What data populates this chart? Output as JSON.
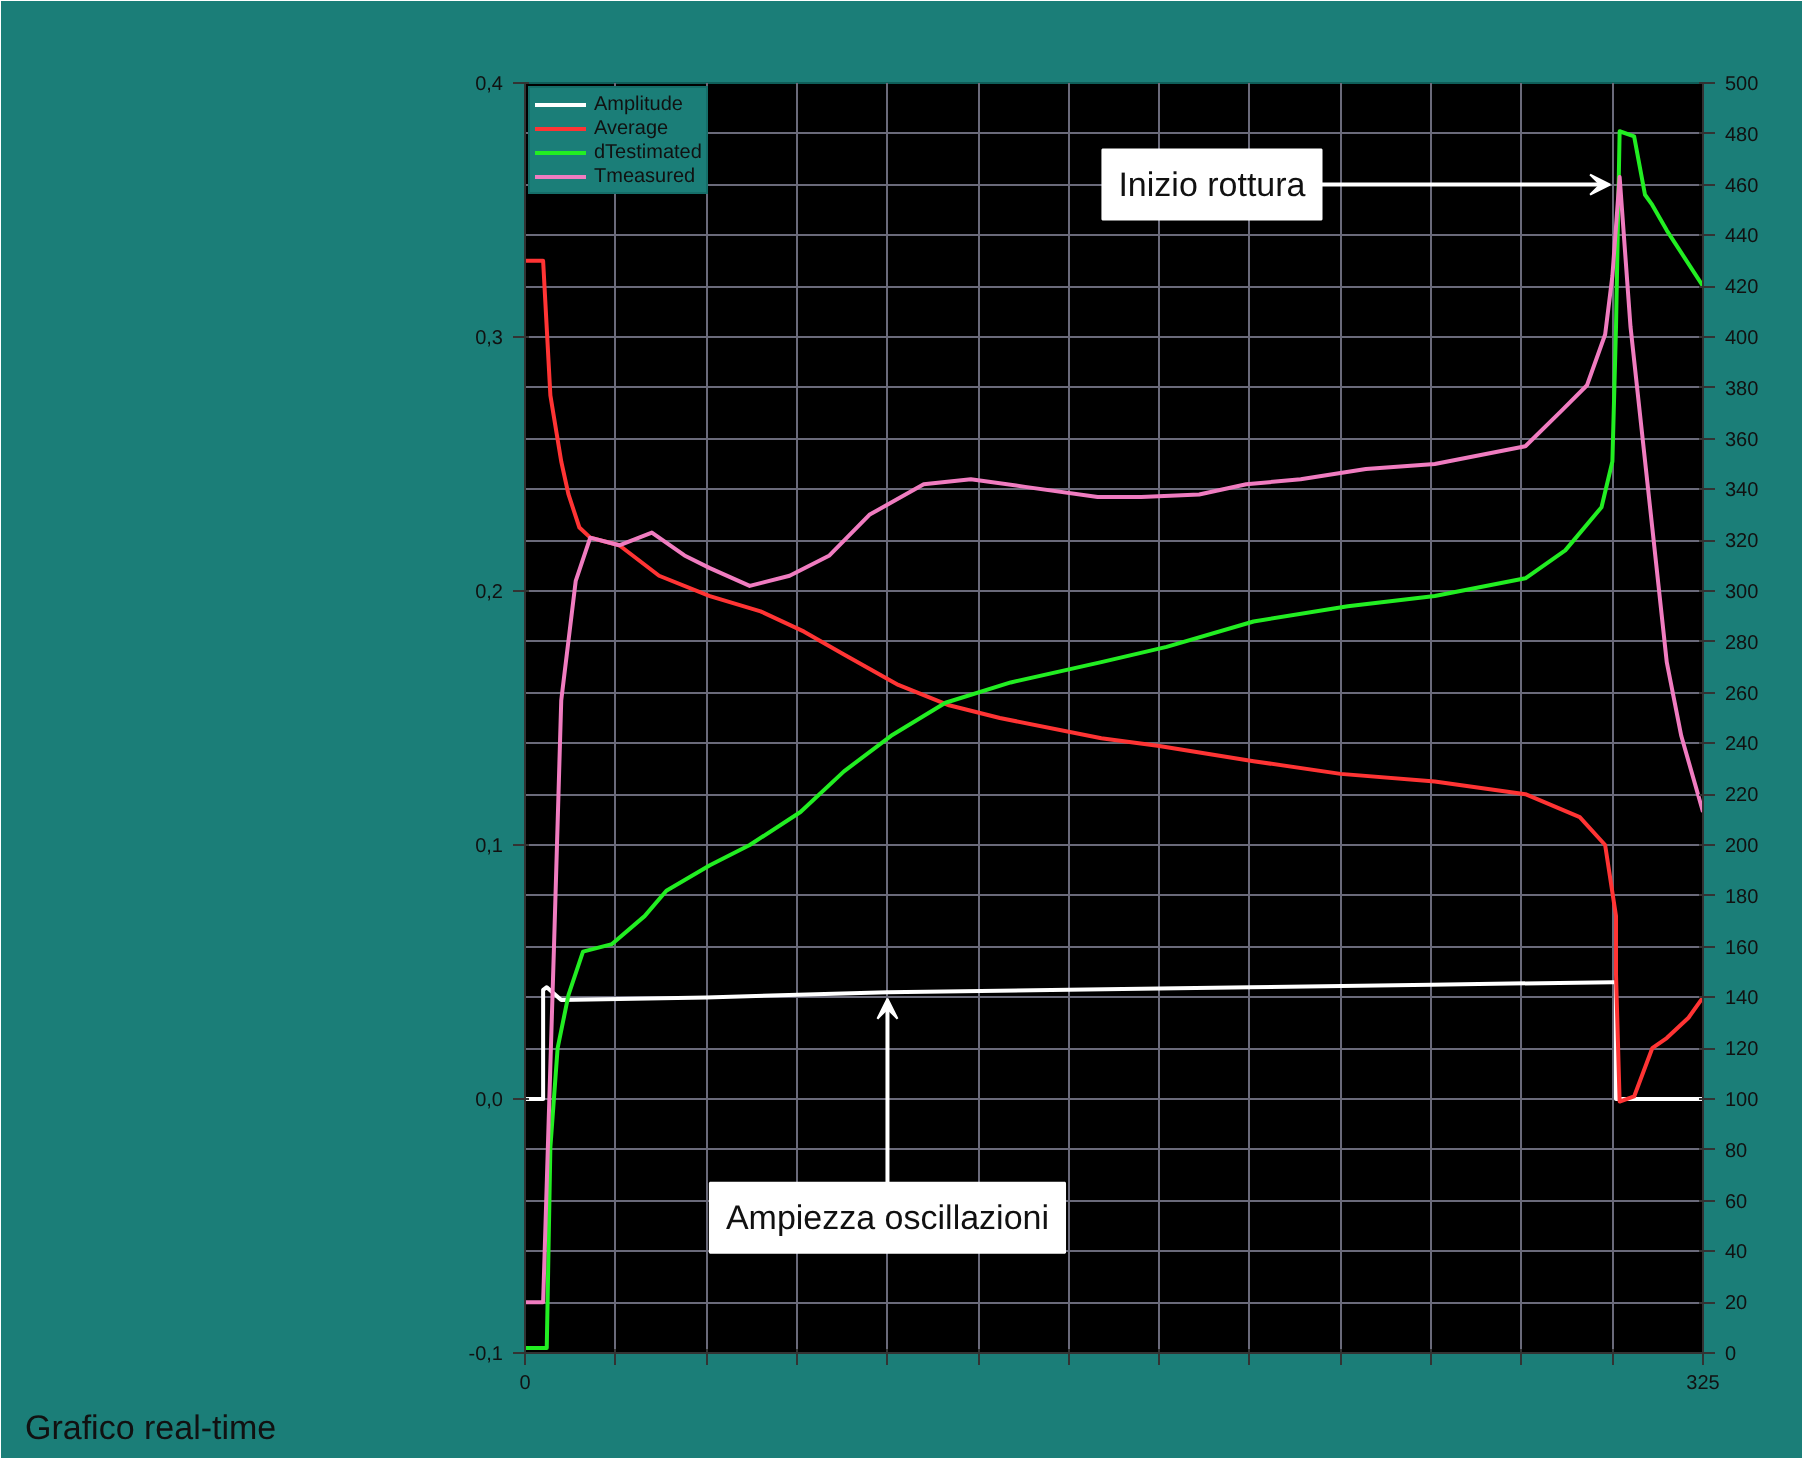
{
  "chart_data": {
    "type": "line",
    "xlim": [
      0,
      325
    ],
    "xticks": [
      0,
      {
        "value": 25,
        "label": null
      },
      {
        "value": 50,
        "label": null
      },
      {
        "value": 75,
        "label": null
      },
      {
        "value": 100,
        "label": null
      },
      {
        "value": 125,
        "label": null
      },
      {
        "value": 150,
        "label": null
      },
      {
        "value": 175,
        "label": null
      },
      {
        "value": 200,
        "label": null
      },
      {
        "value": 225,
        "label": null
      },
      {
        "value": 250,
        "label": null
      },
      {
        "value": 275,
        "label": null
      },
      {
        "value": 300,
        "label": null
      },
      325
    ],
    "ylim": [
      -0.1,
      0.4
    ],
    "yticks": [
      {
        "value": -0.1,
        "label": "-0,1"
      },
      {
        "value": 0,
        "label": "0,0"
      },
      {
        "value": 0.1,
        "label": "0,1"
      },
      {
        "value": 0.2,
        "label": "0,2"
      },
      {
        "value": 0.3,
        "label": "0,3"
      },
      {
        "value": 0.4,
        "label": "0,4"
      }
    ],
    "y2lim": [
      0,
      500
    ],
    "y2ticks": [
      0,
      20,
      40,
      60,
      80,
      100,
      120,
      140,
      160,
      180,
      200,
      220,
      240,
      260,
      280,
      300,
      320,
      340,
      360,
      380,
      400,
      420,
      440,
      460,
      480,
      500
    ],
    "grid": true,
    "legend": "top left",
    "series": [
      {
        "name": "Amplitude",
        "color": "#ffffff",
        "x": [
          0,
          5,
          5,
          6,
          10,
          50,
          100,
          150,
          200,
          250,
          300,
          301,
          301,
          325
        ],
        "values": [
          0,
          0,
          0.043,
          0.044,
          0.039,
          0.04,
          0.042,
          0.043,
          0.044,
          0.045,
          0.046,
          0.046,
          0,
          0
        ]
      },
      {
        "name": "Average",
        "color": "#ff3434",
        "x": [
          0,
          5,
          7,
          10,
          12,
          15,
          18,
          26,
          37,
          51,
          65,
          77,
          88,
          103,
          117,
          131,
          159,
          175,
          201,
          225,
          251,
          276,
          291,
          298,
          301,
          301,
          302,
          306,
          311,
          315,
          321,
          325
        ],
        "values": [
          0.33,
          0.33,
          0.277,
          0.251,
          0.238,
          0.225,
          0.221,
          0.218,
          0.206,
          0.198,
          0.192,
          0.184,
          0.175,
          0.163,
          0.155,
          0.15,
          0.142,
          0.139,
          0.133,
          0.128,
          0.125,
          0.12,
          0.111,
          0.1,
          0.072,
          0.049,
          -0.001,
          0.001,
          0.02,
          0.024,
          0.032,
          0.04
        ]
      },
      {
        "name": "dTestimated",
        "color": "#22ee22",
        "axis": "y2",
        "x": [
          0,
          6,
          7,
          9,
          12,
          16,
          24,
          33,
          39,
          51,
          62,
          76,
          88,
          101,
          116,
          134,
          159,
          177,
          201,
          227,
          251,
          276,
          287,
          297,
          300,
          301,
          302,
          306,
          309,
          311,
          315,
          325
        ],
        "values": [
          2,
          2,
          81,
          120,
          141,
          158,
          161,
          172,
          182,
          192,
          200,
          213,
          229,
          243,
          256,
          264,
          272,
          278,
          288,
          294,
          298,
          305,
          316,
          333,
          351,
          404,
          481,
          479,
          456,
          452,
          442,
          420
        ]
      },
      {
        "name": "Tmeasured",
        "color": "#f07cc0",
        "axis": "y2",
        "x": [
          0,
          5,
          8,
          10,
          14,
          18,
          26,
          35,
          44,
          51,
          62,
          73,
          84,
          95,
          110,
          123,
          138,
          158,
          170,
          186,
          199,
          214,
          232,
          251,
          276,
          286,
          293,
          298,
          300,
          302,
          305,
          311,
          315,
          319,
          325
        ],
        "values": [
          20,
          20,
          160,
          257,
          304,
          321,
          318,
          323,
          314,
          309,
          302,
          306,
          314,
          330,
          342,
          344,
          341,
          337,
          337,
          338,
          342,
          344,
          348,
          350,
          357,
          371,
          381,
          401,
          424,
          463,
          404,
          325,
          272,
          243,
          213
        ]
      }
    ],
    "annotations": [
      {
        "text": "Inizio rottura",
        "x": 301,
        "y": 0.36
      },
      {
        "text": "Ampiezza oscillazioni",
        "x": 100,
        "y": 0.042
      },
      "Grafico real-time"
    ]
  }
}
